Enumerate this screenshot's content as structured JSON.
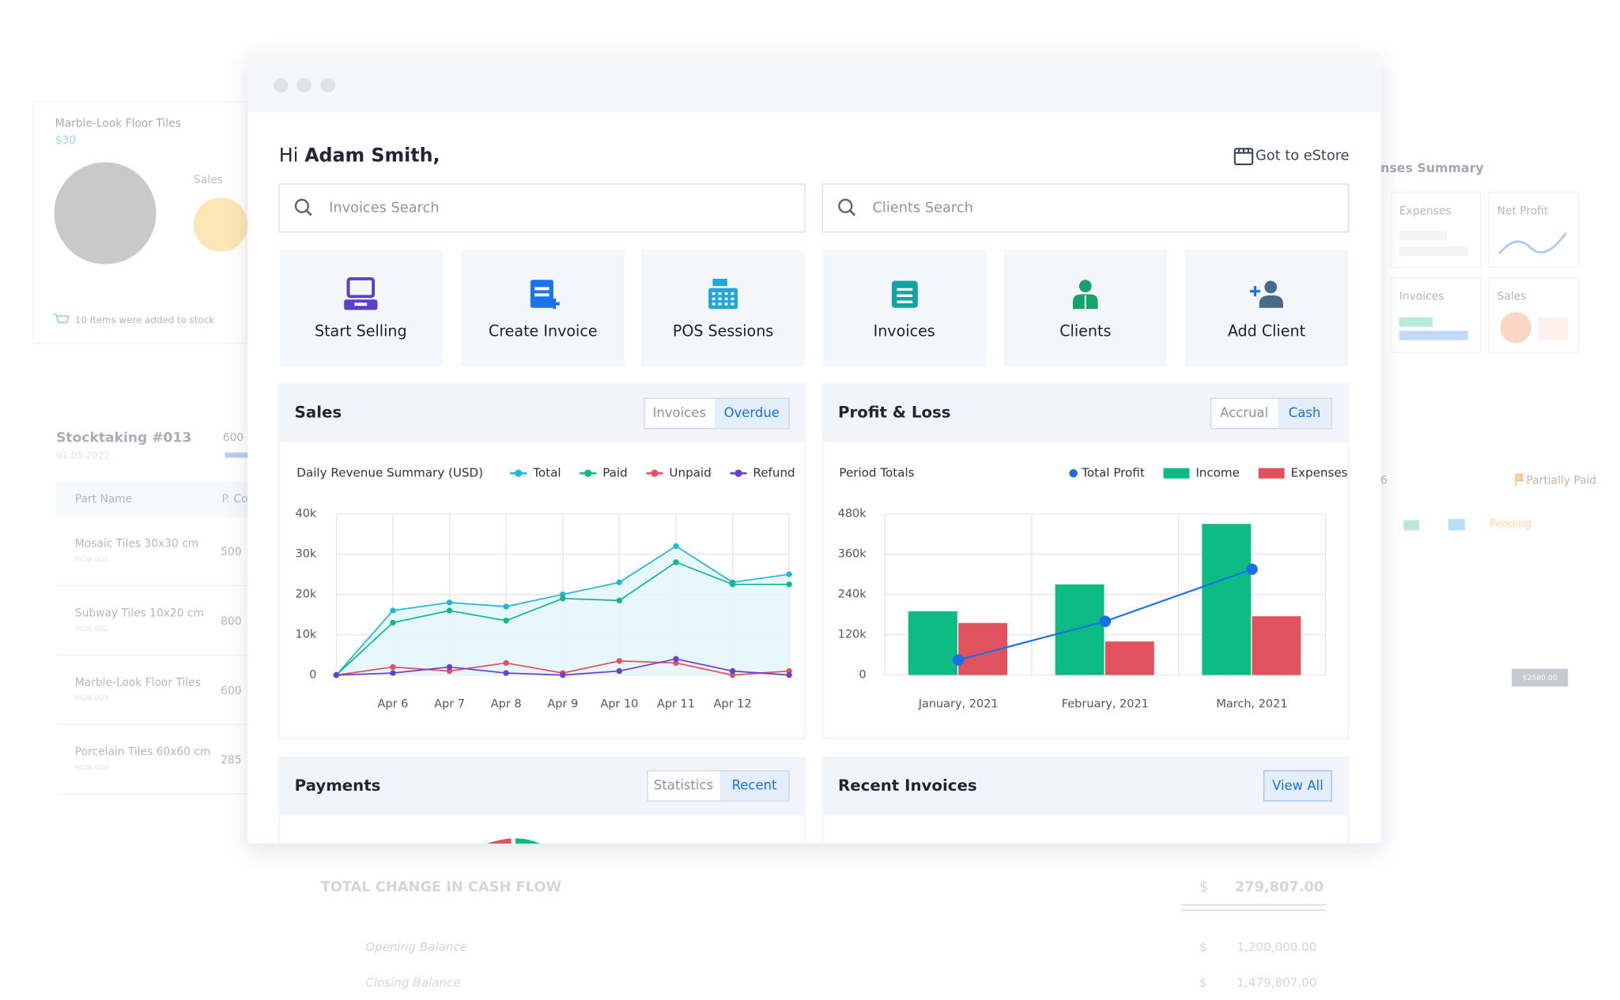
{
  "header": {
    "greeting": "Hi",
    "name": "Adam Smith,",
    "store_link": "Got to eStore"
  },
  "search": [
    "Invoices Search",
    "Clients Search"
  ],
  "tiles": [
    "Start Selling",
    "Create Invoice",
    "POS Sessions",
    "Invoices",
    "Clients",
    "Add Client"
  ],
  "sales_card": {
    "title": "Sales",
    "tabs": [
      "Invoices",
      "Overdue"
    ],
    "active_tab": 1,
    "chart_data": {
      "type": "line",
      "subtitle": "Daily Revenue Summary (USD)",
      "categories": [
        null,
        "Apr 6",
        "Apr 7",
        "Apr 8",
        "Apr 9",
        "Apr 10",
        "Apr 11",
        "Apr 12",
        null
      ],
      "series": [
        {
          "name": "Total",
          "color": "#1fb8d8",
          "area_color": "#e4f6fb",
          "values": [
            0,
            16000,
            18000,
            17000,
            20000,
            23000,
            32000,
            23000,
            25000
          ]
        },
        {
          "name": "Paid",
          "color": "#12b886",
          "values": [
            0,
            13000,
            16000,
            13500,
            19000,
            18500,
            28000,
            22500,
            22500
          ]
        },
        {
          "name": "Unpaid",
          "color": "#e0525d",
          "values": [
            0,
            2000,
            1000,
            3000,
            500,
            3500,
            3000,
            0,
            1000
          ]
        },
        {
          "name": "Refund",
          "color": "#6a3fcf",
          "values": [
            0,
            500,
            2000,
            500,
            0,
            1000,
            4000,
            1000,
            0
          ]
        }
      ],
      "ylim": [
        0,
        40000
      ],
      "yticks": [
        0,
        {
          "value": 10000,
          "label": "10k"
        },
        {
          "value": 20000,
          "label": "20k"
        },
        {
          "value": 30000,
          "label": "30k"
        },
        {
          "value": 40000,
          "label": "40k"
        }
      ],
      "grid": true
    }
  },
  "profit_loss_card": {
    "title": "Profit & Loss",
    "tabs": [
      "Accrual",
      "Cash"
    ],
    "active_tab": 1,
    "chart_data": {
      "type": "bar",
      "subtitle": "Period Totals",
      "categories": [
        "January, 2021",
        "February, 2021",
        "March, 2021"
      ],
      "series": [
        {
          "name": "Total Profit",
          "type": "line",
          "color": "#1a6ee8",
          "values": [
            45000,
            160000,
            315000
          ]
        },
        {
          "name": "Income",
          "color": "#0dbb85",
          "values": [
            190000,
            270000,
            450000
          ]
        },
        {
          "name": "Expenses",
          "color": "#e0525d",
          "values": [
            155000,
            100000,
            175000
          ]
        }
      ],
      "ylim": [
        0,
        480000
      ],
      "yticks": [
        0,
        {
          "value": 120000,
          "label": "120k"
        },
        {
          "value": 240000,
          "label": "240k"
        },
        {
          "value": 360000,
          "label": "360k"
        },
        {
          "value": 480000,
          "label": "480k"
        }
      ],
      "grid": true
    }
  },
  "payments_card": {
    "title": "Payments",
    "tabs": [
      "Statistics",
      "Recent"
    ],
    "active_tab": 1
  },
  "recent_invoices_card": {
    "title": "Recent Invoices",
    "button": "View All"
  },
  "background": {
    "product": {
      "name": "Marble-Look Floor Tiles",
      "price": "$30",
      "chart_label": "Sales",
      "notice": "10 Items were added to stock"
    },
    "stocktaking": {
      "title": "Stocktaking #013",
      "date": "01.05.2022",
      "total": 600,
      "columns": [
        "Part Name",
        "P. Co"
      ],
      "rows": [
        [
          "Mosaic Tiles 30x30 cm",
          "MOB-001",
          500
        ],
        [
          "Subway Tiles 10x20 cm",
          "MOB-002",
          800
        ],
        [
          "Marble-Look Floor Tiles",
          "MOB-003",
          600
        ],
        [
          "Porcelain Tiles 60x60 cm",
          "MOB-004",
          285
        ]
      ]
    },
    "summary": {
      "title": "nses Summary",
      "cards": [
        "Expenses",
        "Net Profit",
        "Invoices",
        "Sales"
      ]
    },
    "invoice": {
      "number": "6",
      "status": "Partially Paid",
      "state": "Pending",
      "amount": "$2580.00"
    },
    "cash_flow": {
      "title": "TOTAL CHANGE IN CASH FLOW",
      "currency": "$",
      "total": "279,807.00",
      "rows": [
        [
          "Opening Balance",
          "$",
          "1,200,000.00"
        ],
        [
          "Closing Balance",
          "$",
          "1,479,807.00"
        ]
      ]
    }
  }
}
